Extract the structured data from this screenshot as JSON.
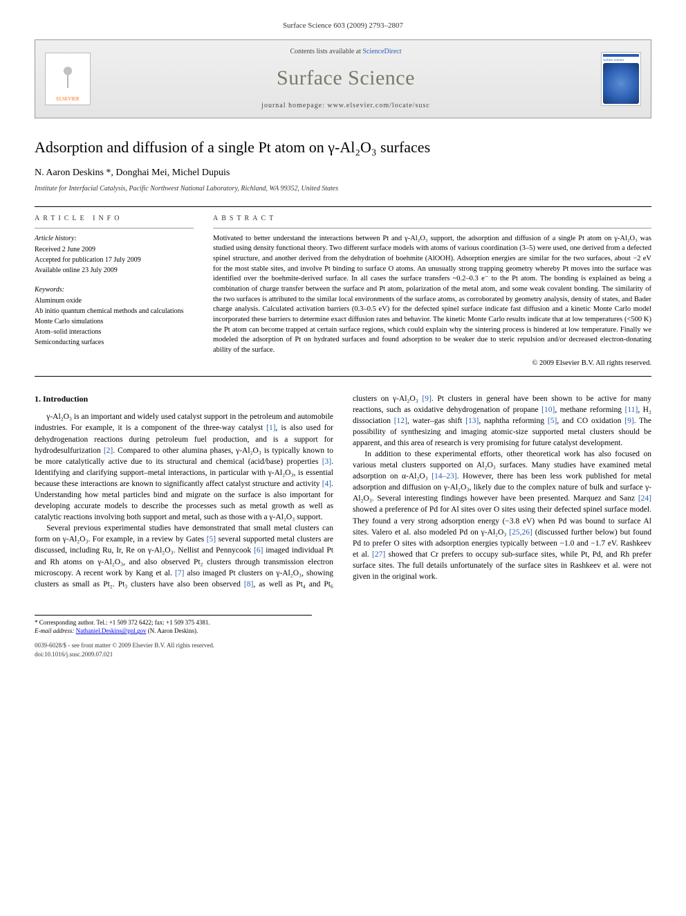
{
  "page_ref": "Surface Science 603 (2009) 2793–2807",
  "banner": {
    "contents_prefix": "Contents lists available at ",
    "contents_link": "ScienceDirect",
    "journal_name": "Surface Science",
    "homepage_prefix": "journal homepage: ",
    "homepage_url": "www.elsevier.com/locate/susc",
    "publisher_logo_label": "ELSEVIER",
    "cover_label": "surface science"
  },
  "title": "Adsorption and diffusion of a single Pt atom on γ-Al₂O₃ surfaces",
  "authors": "N. Aaron Deskins *, Donghai Mei, Michel Dupuis",
  "affiliation": "Institute for Interfacial Catalysis, Pacific Northwest National Laboratory, Richland, WA 99352, United States",
  "article_info": {
    "heading": "article info",
    "history_label": "Article history:",
    "received": "Received 2 June 2009",
    "accepted": "Accepted for publication 17 July 2009",
    "online": "Available online 23 July 2009",
    "keywords_label": "Keywords:",
    "keywords": [
      "Aluminum oxide",
      "Ab initio quantum chemical methods and calculations",
      "Monte Carlo simulations",
      "Atom–solid interactions",
      "Semiconducting surfaces"
    ]
  },
  "abstract": {
    "heading": "abstract",
    "text": "Motivated to better understand the interactions between Pt and γ-Al₂O₃ support, the adsorption and diffusion of a single Pt atom on γ-Al₂O₃ was studied using density functional theory. Two different surface models with atoms of various coordination (3–5) were used, one derived from a defected spinel structure, and another derived from the dehydration of boehmite (AlOOH). Adsorption energies are similar for the two surfaces, about −2 eV for the most stable sites, and involve Pt binding to surface O atoms. An unusually strong trapping geometry whereby Pt moves into the surface was identified over the boehmite-derived surface. In all cases the surface transfers ~0.2–0.3 e⁻ to the Pt atom. The bonding is explained as being a combination of charge transfer between the surface and Pt atom, polarization of the metal atom, and some weak covalent bonding. The similarity of the two surfaces is attributed to the similar local environments of the surface atoms, as corroborated by geometry analysis, density of states, and Bader charge analysis. Calculated activation barriers (0.3–0.5 eV) for the defected spinel surface indicate fast diffusion and a kinetic Monte Carlo model incorporated these barriers to determine exact diffusion rates and behavior. The kinetic Monte Carlo results indicate that at low temperatures (<500 K) the Pt atom can become trapped at certain surface regions, which could explain why the sintering process is hindered at low temperature. Finally we modeled the adsorption of Pt on hydrated surfaces and found adsorption to be weaker due to steric repulsion and/or decreased electron-donating ability of the surface.",
    "copyright": "© 2009 Elsevier B.V. All rights reserved."
  },
  "intro_heading": "1. Introduction",
  "intro_p1": "γ-Al₂O₃ is an important and widely used catalyst support in the petroleum and automobile industries. For example, it is a component of the three-way catalyst [1], is also used for dehydrogenation reactions during petroleum fuel production, and is a support for hydrodesulfurization [2]. Compared to other alumina phases, γ-Al₂O₃ is typically known to be more catalytically active due to its structural and chemical (acid/base) properties [3]. Identifying and clarifying support–metal interactions, in particular with γ-Al₂O₃, is essential because these interactions are known to significantly affect catalyst structure and activity [4]. Understanding how metal particles bind and migrate on the surface is also important for developing accurate models to describe the processes such as metal growth as well as catalytic reactions involving both support and metal, such as those with a γ-Al₂O₃ support.",
  "intro_p2": "Several previous experimental studies have demonstrated that small metal clusters can form on γ-Al₂O₃. For example, in a review by Gates [5] several supported metal clusters are discussed, including Ru, Ir, Re on γ-Al₂O₃. Nellist and Pennycook [6] imaged individual Pt and Rh atoms on γ-Al₂O₃, and also observed Pt₂ clusters through transmission electron microscopy. A recent work by Kang et al. [7] also imaged Pt clusters on γ-Al₂O₃, showing clusters as small as Pt₂. Pt₃ clusters have also been observed [8], as well as Pt₄ and Pt₆ clusters on γ-Al₂O₃ [9]. Pt clusters in general have been shown to be active for many reactions, such as oxidative dehydrogenation of propane [10], methane reforming [11], H₂ dissociation [12], water–gas shift [13], naphtha reforming [5], and CO oxidation [9]. The possibility of synthesizing and imaging atomic-size supported metal clusters should be apparent, and this area of research is very promising for future catalyst development.",
  "intro_p3": "In addition to these experimental efforts, other theoretical work has also focused on various metal clusters supported on Al₂O₃ surfaces. Many studies have examined metal adsorption on α-Al₂O₃ [14–23]. However, there has been less work published for metal adsorption and diffusion on γ-Al₂O₃, likely due to the complex nature of bulk and surface γ-Al₂O₃. Several interesting findings however have been presented. Marquez and Sanz [24] showed a preference of Pd for Al sites over O sites using their defected spinel surface model. They found a very strong adsorption energy (−3.8 eV) when Pd was bound to surface Al sites. Valero et al. also modeled Pd on γ-Al₂O₃ [25,26] (discussed further below) but found Pd to prefer O sites with adsorption energies typically between −1.0 and −1.7 eV. Rashkeev et al. [27] showed that Cr prefers to occupy sub-surface sites, while Pt, Pd, and Rh prefer surface sites. The full details unfortunately of the surface sites in Rashkeev et al. were not given in the original work.",
  "footnote": {
    "corresponding": "* Corresponding author. Tel.: +1 509 372 6422; fax: +1 509 375 4381.",
    "email_label": "E-mail address:",
    "email": "Nathaniel.Deskins@pnl.gov",
    "email_who": "(N. Aaron Deskins)."
  },
  "bottom": {
    "issn_line": "0039-6028/$ - see front matter © 2009 Elsevier B.V. All rights reserved.",
    "doi_line": "doi:10.1016/j.susc.2009.07.021"
  },
  "colors": {
    "link": "#2a5db0",
    "journal_title": "#7a7a66",
    "banner_bg_top": "#f0f0f0",
    "banner_bg_bottom": "#e4e4e4",
    "elsevier_orange": "#ff6a00"
  }
}
